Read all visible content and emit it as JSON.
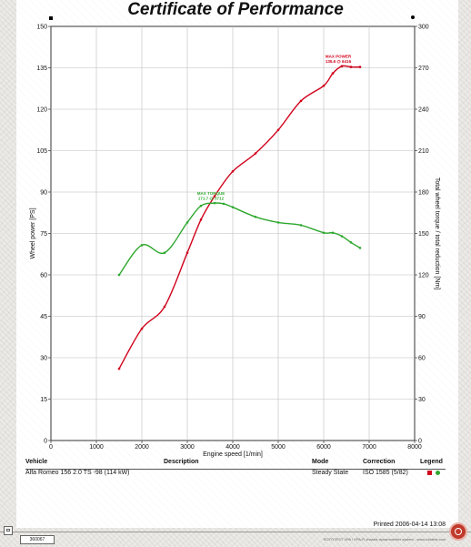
{
  "title": "Certificate of Performance",
  "chart_data": {
    "type": "line",
    "xlabel": "Engine speed [1/min]",
    "ylabel": "Wheel power [PS]",
    "y2label": "Total wheel torque / total reduction [Nm]",
    "xlim": [
      0,
      8000
    ],
    "ylim": [
      0,
      150
    ],
    "y2lim": [
      0,
      300
    ],
    "xticks": [
      "0",
      "1000",
      "2000",
      "3000",
      "4000",
      "5000",
      "6000",
      "7000",
      "8000"
    ],
    "yticks": [
      "0",
      "15",
      "30",
      "45",
      "60",
      "75",
      "90",
      "105",
      "120",
      "135",
      "150"
    ],
    "y2ticks": [
      "0",
      "30",
      "60",
      "90",
      "120",
      "150",
      "180",
      "210",
      "240",
      "270",
      "300"
    ],
    "grid": true,
    "series": [
      {
        "axis": "left",
        "color": "#d0021b",
        "x": [
          1500,
          2000,
          2500,
          3000,
          3300,
          3600,
          4000,
          4500,
          5000,
          5500,
          6000,
          6200,
          6400,
          6600,
          6800
        ],
        "y": [
          26,
          40.5,
          48.5,
          68,
          80,
          88.5,
          97.5,
          104,
          112.5,
          123,
          128.5,
          133,
          135.6,
          135.3,
          135.3
        ]
      },
      {
        "axis": "right",
        "color": "#2ea82e",
        "x": [
          1500,
          2000,
          2500,
          3000,
          3300,
          3600,
          3800,
          4000,
          4500,
          5000,
          5500,
          6000,
          6200,
          6400,
          6600,
          6800
        ],
        "y": [
          120,
          141.5,
          136,
          158,
          170,
          172,
          171.5,
          169,
          162,
          158,
          156,
          150.5,
          150.5,
          148,
          143.5,
          139.5
        ]
      }
    ],
    "annotations": [
      {
        "series": 0,
        "lines": [
          "MAX POWER",
          "135.6 @ 6416"
        ]
      },
      {
        "series": 1,
        "lines": [
          "MAX TORQUE",
          "171.7 @ 3712"
        ]
      }
    ]
  },
  "info": {
    "headers": {
      "vehicle": "Vehicle",
      "description": "Description",
      "mode": "Mode",
      "correction": "Correction",
      "legend": "Legend"
    },
    "vehicle": "Alfa Romeo 156 2.0 TS -98 (114 kW)",
    "description": "",
    "mode": "Steady State",
    "correction": "ISO 1585 (5/82)",
    "legend_colors": [
      "#d0021b",
      "#2ea82e"
    ]
  },
  "footer": {
    "printed": "Printed 2006-04-14 13:08",
    "serial": "360067",
    "disclaimer": "ROTOTEST VPA / VPA-R chassis dynamometer system - www.rototest.com"
  }
}
